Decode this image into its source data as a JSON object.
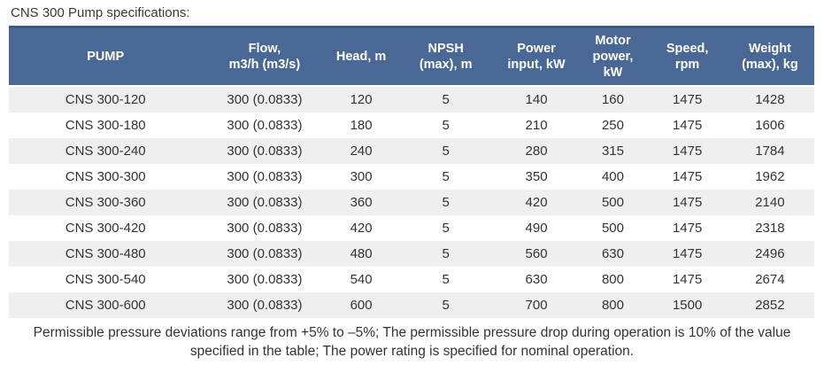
{
  "title": "CNS 300 Pump specifications:",
  "table": {
    "columns": [
      "PUMP",
      "Flow,\nm3/h (m3/s)",
      "Head, m",
      "NPSH\n(max), m",
      "Power\ninput, kW",
      "Motor\npower,\nkW",
      "Speed,\nrpm",
      "Weight\n(max), kg"
    ],
    "rows": [
      [
        "CNS 300-120",
        "300 (0.0833)",
        "120",
        "5",
        "140",
        "160",
        "1475",
        "1428"
      ],
      [
        "CNS 300-180",
        "300 (0.0833)",
        "180",
        "5",
        "210",
        "250",
        "1475",
        "1606"
      ],
      [
        "CNS 300-240",
        "300 (0.0833)",
        "240",
        "5",
        "280",
        "315",
        "1475",
        "1784"
      ],
      [
        "CNS 300-300",
        "300 (0.0833)",
        "300",
        "5",
        "350",
        "400",
        "1475",
        "1962"
      ],
      [
        "CNS 300-360",
        "300 (0.0833)",
        "360",
        "5",
        "420",
        "500",
        "1475",
        "2140"
      ],
      [
        "CNS 300-420",
        "300 (0.0833)",
        "420",
        "5",
        "490",
        "500",
        "1475",
        "2318"
      ],
      [
        "CNS 300-480",
        "300 (0.0833)",
        "480",
        "5",
        "560",
        "630",
        "1475",
        "2496"
      ],
      [
        "CNS 300-540",
        "300 (0.0833)",
        "540",
        "5",
        "630",
        "800",
        "1475",
        "2674"
      ],
      [
        "CNS 300-600",
        "300 (0.0833)",
        "600",
        "5",
        "700",
        "800",
        "1500",
        "2852"
      ]
    ]
  },
  "footer": "Permissible pressure deviations range from +5% to –5%; The permissible pressure drop during operation is 10% of the value specified in the table; The power rating is specified for nominal operation.",
  "colors": {
    "header_background": "#4a6896",
    "header_top_border": "#3e5a82",
    "header_text": "#ffffff",
    "row_stripe": "#efefef",
    "body_text": "#333333"
  }
}
